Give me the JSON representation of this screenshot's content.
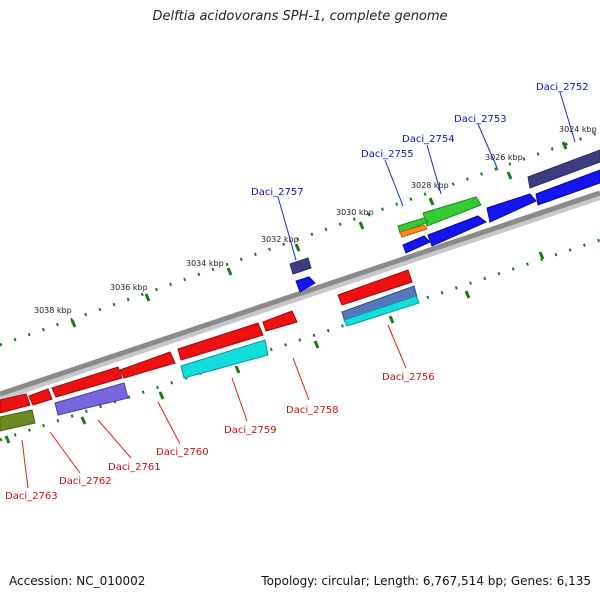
{
  "title": "Delftia acidovorans SPH-1, complete genome",
  "footer": {
    "accession": "Accession: NC_010002",
    "summary": "Topology: circular; Length: 6,767,514 bp; Genes: 6,135"
  },
  "ticks": [
    "3024 kbp",
    "3026 kbp",
    "3028 kbp",
    "3030 kbp",
    "3032 kbp",
    "3034 kbp",
    "3036 kbp",
    "3038 kbp"
  ],
  "genes_forward": [
    "Daci_2752",
    "Daci_2753",
    "Daci_2754",
    "Daci_2755",
    "Daci_2757"
  ],
  "genes_reverse": [
    "Daci_2756",
    "Daci_2758",
    "Daci_2759",
    "Daci_2760",
    "Daci_2761",
    "Daci_2762",
    "Daci_2763"
  ],
  "colors": {
    "forward_label": "#1010cc",
    "reverse_label": "#cc1010",
    "backbone": "#808080",
    "tick": "#1a7a1a",
    "gene_red": "#ee1111",
    "gene_blue": "#1010ee",
    "gene_navy": "#3a3a80",
    "gene_cyan": "#11dddd",
    "gene_green": "#33cc33",
    "gene_lavender": "#7766dd",
    "gene_olive": "#6a8a20"
  }
}
